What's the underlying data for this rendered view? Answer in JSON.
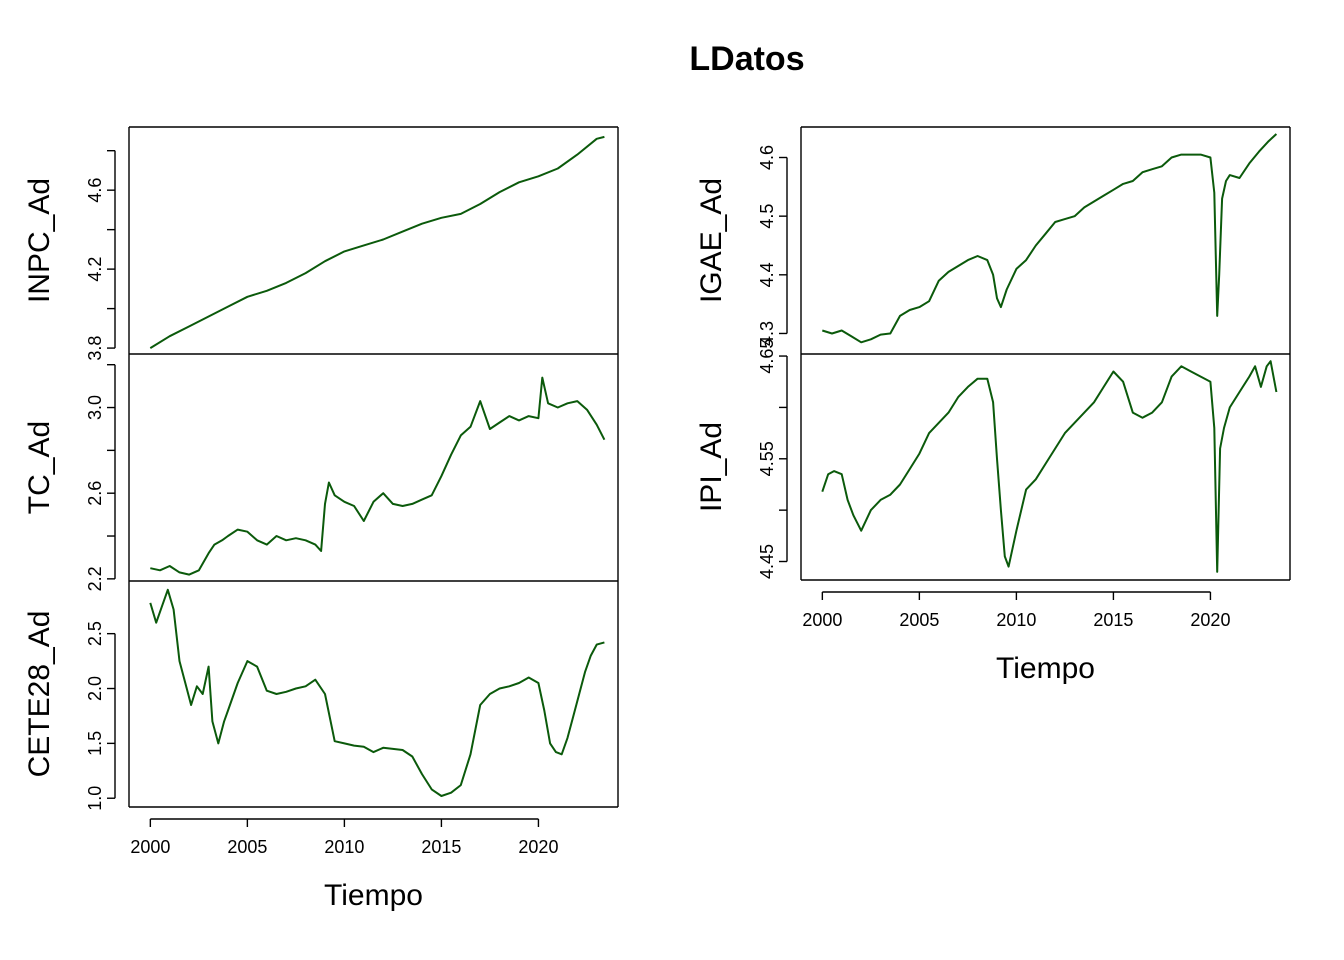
{
  "title": "LDatos",
  "colors": {
    "series": "#0b5a0b",
    "axis": "#000000",
    "background": "#ffffff"
  },
  "chart_data": [
    {
      "type": "line",
      "name": "INPC_Ad",
      "ylabel": "INPC_Ad",
      "xlabel": "",
      "column": "left",
      "row": 0,
      "xlim": [
        1998.9,
        2024.1
      ],
      "ylim": [
        3.77,
        4.92
      ],
      "yticks": [
        3.8,
        4.0,
        4.2,
        4.4,
        4.6,
        4.8
      ],
      "yticklabels": [
        "3.8",
        "",
        "4.2",
        "",
        "4.6",
        ""
      ],
      "xticks": [
        2000,
        2005,
        2010,
        2015,
        2020
      ],
      "xticklabels": [],
      "x": [
        2000.0,
        2001.0,
        2002.0,
        2003.0,
        2004.0,
        2005.0,
        2006.0,
        2007.0,
        2008.0,
        2009.0,
        2010.0,
        2011.0,
        2012.0,
        2013.0,
        2014.0,
        2015.0,
        2016.0,
        2017.0,
        2018.0,
        2019.0,
        2020.0,
        2021.0,
        2022.0,
        2023.0,
        2023.4
      ],
      "y": [
        3.8,
        3.86,
        3.91,
        3.96,
        4.01,
        4.06,
        4.09,
        4.13,
        4.18,
        4.24,
        4.29,
        4.32,
        4.35,
        4.39,
        4.43,
        4.46,
        4.48,
        4.53,
        4.59,
        4.64,
        4.67,
        4.71,
        4.78,
        4.86,
        4.87
      ]
    },
    {
      "type": "line",
      "name": "TC_Ad",
      "ylabel": "TC_Ad",
      "xlabel": "",
      "column": "left",
      "row": 1,
      "xlim": [
        1998.9,
        2024.1
      ],
      "ylim": [
        2.19,
        3.25
      ],
      "yticks": [
        2.2,
        2.4,
        2.6,
        2.8,
        3.0,
        3.2
      ],
      "yticklabels": [
        "2.2",
        "",
        "2.6",
        "",
        "3.0",
        ""
      ],
      "xticks": [
        2000,
        2005,
        2010,
        2015,
        2020
      ],
      "xticklabels": [],
      "x": [
        2000.0,
        2000.5,
        2001.0,
        2001.5,
        2002.0,
        2002.5,
        2003.0,
        2003.3,
        2003.7,
        2004.0,
        2004.5,
        2005.0,
        2005.5,
        2006.0,
        2006.5,
        2007.0,
        2007.5,
        2008.0,
        2008.5,
        2008.8,
        2009.0,
        2009.2,
        2009.5,
        2010.0,
        2010.5,
        2011.0,
        2011.5,
        2012.0,
        2012.5,
        2013.0,
        2013.5,
        2014.0,
        2014.5,
        2015.0,
        2015.5,
        2016.0,
        2016.5,
        2017.0,
        2017.5,
        2018.0,
        2018.5,
        2019.0,
        2019.5,
        2020.0,
        2020.2,
        2020.5,
        2021.0,
        2021.5,
        2022.0,
        2022.5,
        2023.0,
        2023.4
      ],
      "y": [
        2.25,
        2.24,
        2.26,
        2.23,
        2.22,
        2.24,
        2.32,
        2.36,
        2.38,
        2.4,
        2.43,
        2.42,
        2.38,
        2.36,
        2.4,
        2.38,
        2.39,
        2.38,
        2.36,
        2.33,
        2.55,
        2.65,
        2.59,
        2.56,
        2.54,
        2.47,
        2.56,
        2.6,
        2.55,
        2.54,
        2.55,
        2.57,
        2.59,
        2.68,
        2.78,
        2.87,
        2.91,
        3.03,
        2.9,
        2.93,
        2.96,
        2.94,
        2.96,
        2.95,
        3.14,
        3.02,
        3.0,
        3.02,
        3.03,
        2.99,
        2.92,
        2.85
      ]
    },
    {
      "type": "line",
      "name": "CETE28_Ad",
      "ylabel": "CETE28_Ad",
      "xlabel": "Tiempo",
      "column": "left",
      "row": 2,
      "xlim": [
        1998.9,
        2024.1
      ],
      "ylim": [
        0.92,
        2.98
      ],
      "yticks": [
        1.0,
        1.5,
        2.0,
        2.5
      ],
      "yticklabels": [
        "1.0",
        "1.5",
        "2.0",
        "2.5"
      ],
      "xticks": [
        2000,
        2005,
        2010,
        2015,
        2020
      ],
      "xticklabels": [
        "2000",
        "2005",
        "2010",
        "2015",
        "2020"
      ],
      "x": [
        2000.0,
        2000.3,
        2000.6,
        2000.9,
        2001.2,
        2001.5,
        2001.8,
        2002.1,
        2002.4,
        2002.7,
        2003.0,
        2003.2,
        2003.5,
        2003.8,
        2004.0,
        2004.5,
        2005.0,
        2005.5,
        2006.0,
        2006.5,
        2007.0,
        2007.5,
        2008.0,
        2008.5,
        2009.0,
        2009.5,
        2010.0,
        2010.5,
        2011.0,
        2011.5,
        2012.0,
        2012.5,
        2013.0,
        2013.5,
        2014.0,
        2014.5,
        2015.0,
        2015.5,
        2016.0,
        2016.5,
        2017.0,
        2017.5,
        2018.0,
        2018.5,
        2019.0,
        2019.5,
        2020.0,
        2020.3,
        2020.6,
        2020.9,
        2021.2,
        2021.5,
        2021.8,
        2022.1,
        2022.4,
        2022.7,
        2023.0,
        2023.4
      ],
      "y": [
        2.78,
        2.6,
        2.75,
        2.9,
        2.72,
        2.25,
        2.05,
        1.85,
        2.02,
        1.95,
        2.2,
        1.7,
        1.5,
        1.7,
        1.8,
        2.05,
        2.25,
        2.2,
        1.98,
        1.95,
        1.97,
        2.0,
        2.02,
        2.08,
        1.95,
        1.52,
        1.5,
        1.48,
        1.47,
        1.42,
        1.46,
        1.45,
        1.44,
        1.38,
        1.22,
        1.08,
        1.02,
        1.05,
        1.12,
        1.4,
        1.85,
        1.95,
        2.0,
        2.02,
        2.05,
        2.1,
        2.05,
        1.8,
        1.5,
        1.42,
        1.4,
        1.55,
        1.75,
        1.95,
        2.15,
        2.3,
        2.4,
        2.42
      ]
    },
    {
      "type": "line",
      "name": "IGAE_Ad",
      "ylabel": "IGAE_Ad",
      "xlabel": "",
      "column": "right",
      "row": 0,
      "xlim": [
        1998.9,
        2024.1
      ],
      "ylim": [
        4.265,
        4.652
      ],
      "yticks": [
        4.3,
        4.4,
        4.5,
        4.6
      ],
      "yticklabels": [
        "4.3",
        "4.4",
        "4.5",
        "4.6"
      ],
      "xticks": [
        2000,
        2005,
        2010,
        2015,
        2020
      ],
      "xticklabels": [],
      "x": [
        2000.0,
        2000.5,
        2001.0,
        2001.5,
        2002.0,
        2002.5,
        2003.0,
        2003.5,
        2004.0,
        2004.5,
        2005.0,
        2005.5,
        2006.0,
        2006.5,
        2007.0,
        2007.5,
        2008.0,
        2008.5,
        2008.8,
        2009.0,
        2009.2,
        2009.5,
        2010.0,
        2010.5,
        2011.0,
        2011.5,
        2012.0,
        2012.5,
        2013.0,
        2013.5,
        2014.0,
        2014.5,
        2015.0,
        2015.5,
        2016.0,
        2016.5,
        2017.0,
        2017.5,
        2018.0,
        2018.5,
        2019.0,
        2019.5,
        2020.0,
        2020.2,
        2020.35,
        2020.45,
        2020.6,
        2020.8,
        2021.0,
        2021.5,
        2022.0,
        2022.5,
        2023.0,
        2023.4
      ],
      "y": [
        4.305,
        4.3,
        4.305,
        4.295,
        4.285,
        4.29,
        4.298,
        4.3,
        4.33,
        4.34,
        4.345,
        4.355,
        4.39,
        4.405,
        4.415,
        4.425,
        4.432,
        4.425,
        4.4,
        4.36,
        4.345,
        4.375,
        4.41,
        4.425,
        4.45,
        4.47,
        4.49,
        4.495,
        4.5,
        4.515,
        4.525,
        4.535,
        4.545,
        4.555,
        4.56,
        4.575,
        4.58,
        4.585,
        4.6,
        4.605,
        4.605,
        4.605,
        4.6,
        4.54,
        4.33,
        4.4,
        4.53,
        4.56,
        4.57,
        4.565,
        4.59,
        4.61,
        4.628,
        4.64
      ]
    },
    {
      "type": "line",
      "name": "IPI_Ad",
      "ylabel": "IPI_Ad",
      "xlabel": "Tiempo",
      "column": "right",
      "row": 1,
      "xlim": [
        1998.9,
        2024.1
      ],
      "ylim": [
        4.432,
        4.652
      ],
      "yticks": [
        4.45,
        4.5,
        4.55,
        4.6,
        4.65
      ],
      "yticklabels": [
        "4.45",
        "",
        "4.55",
        "",
        "4.65"
      ],
      "xticks": [
        2000,
        2005,
        2010,
        2015,
        2020
      ],
      "xticklabels": [
        "2000",
        "2005",
        "2010",
        "2015",
        "2020"
      ],
      "x": [
        2000.0,
        2000.3,
        2000.6,
        2001.0,
        2001.3,
        2001.6,
        2002.0,
        2002.5,
        2003.0,
        2003.5,
        2004.0,
        2004.5,
        2005.0,
        2005.5,
        2006.0,
        2006.5,
        2007.0,
        2007.5,
        2008.0,
        2008.5,
        2008.8,
        2009.0,
        2009.2,
        2009.4,
        2009.6,
        2010.0,
        2010.5,
        2011.0,
        2011.5,
        2012.0,
        2012.5,
        2013.0,
        2013.5,
        2014.0,
        2014.5,
        2015.0,
        2015.5,
        2016.0,
        2016.5,
        2017.0,
        2017.5,
        2018.0,
        2018.5,
        2019.0,
        2019.5,
        2020.0,
        2020.2,
        2020.35,
        2020.5,
        2020.7,
        2021.0,
        2021.5,
        2022.0,
        2022.3,
        2022.6,
        2022.9,
        2023.1,
        2023.4
      ],
      "y": [
        4.518,
        4.535,
        4.538,
        4.535,
        4.51,
        4.495,
        4.48,
        4.5,
        4.51,
        4.515,
        4.525,
        4.54,
        4.555,
        4.575,
        4.585,
        4.595,
        4.61,
        4.62,
        4.628,
        4.628,
        4.605,
        4.55,
        4.5,
        4.455,
        4.445,
        4.48,
        4.52,
        4.53,
        4.545,
        4.56,
        4.575,
        4.585,
        4.595,
        4.605,
        4.62,
        4.635,
        4.625,
        4.595,
        4.59,
        4.595,
        4.605,
        4.63,
        4.64,
        4.635,
        4.63,
        4.625,
        4.58,
        4.44,
        4.56,
        4.58,
        4.6,
        4.615,
        4.63,
        4.64,
        4.62,
        4.64,
        4.645,
        4.615
      ]
    }
  ]
}
